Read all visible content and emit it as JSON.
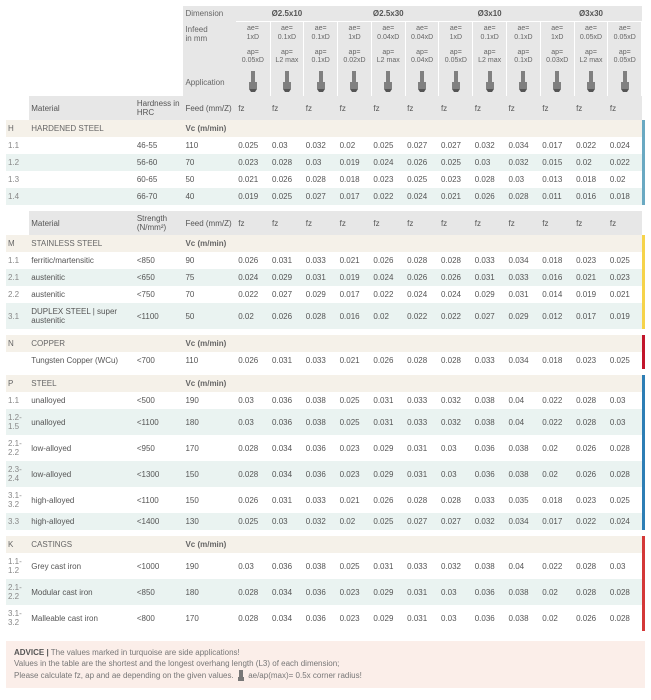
{
  "header": {
    "dimension_label": "Dimension",
    "infeed_label": "Infeed",
    "infeed_unit": "in mm",
    "application_label": "Application",
    "groups": [
      "Ø2.5x10",
      "Ø2.5x30",
      "Ø3x10",
      "Ø3x30"
    ],
    "cols": [
      {
        "ae": "ae= 1xD",
        "ap": "ap= 0.05xD"
      },
      {
        "ae": "ae= 0.1xD",
        "ap": "ap= L2 max"
      },
      {
        "ae": "ae= 0.1xD",
        "ap": "ap= 0.1xD"
      },
      {
        "ae": "ae= 1xD",
        "ap": "ap= 0.02xD"
      },
      {
        "ae": "ae= 0.04xD",
        "ap": "ap= L2 max"
      },
      {
        "ae": "ae= 0.04xD",
        "ap": "ap= 0.04xD"
      },
      {
        "ae": "ae= 1xD",
        "ap": "ap= 0.05xD"
      },
      {
        "ae": "ae= 0.1xD",
        "ap": "ap= L2 max"
      },
      {
        "ae": "ae= 0.1xD",
        "ap": "ap= 0.1xD"
      },
      {
        "ae": "ae= 1xD",
        "ap": "ap= 0.03xD"
      },
      {
        "ae": "ae= 0.05xD",
        "ap": "ap= L2 max"
      },
      {
        "ae": "ae= 0.05xD",
        "ap": "ap= 0.05xD"
      }
    ],
    "material_label": "Material",
    "hardness_label": "Hardness in HRC",
    "strength_label": "Strength (N/mm²)",
    "feed_label": "Feed (mm/Z)",
    "vc_label": "Vc (m/min)",
    "fz": "fz"
  },
  "colors": {
    "hdr_bg": "#e7e7e7",
    "cat_bg": "#f5f1e9",
    "alt_bg": "#eaf3f1",
    "advice_bg": "#fbeee9",
    "H": "#6aa9c2",
    "M": "#f6d34a",
    "N": "#c2152b",
    "P": "#2d7eb5",
    "K": "#d43838"
  },
  "sections": [
    {
      "letter": "H",
      "color": "#6aa9c2",
      "hardness_key": "hrc",
      "category": "HARDENED STEEL",
      "rows": [
        {
          "code": "1.1",
          "name": "",
          "h": "46-55",
          "vc": "110",
          "v": [
            "0.025",
            "0.03",
            "0.032",
            "0.02",
            "0.025",
            "0.027",
            "0.027",
            "0.032",
            "0.034",
            "0.017",
            "0.022",
            "0.024"
          ]
        },
        {
          "code": "1.2",
          "name": "",
          "h": "56-60",
          "vc": "70",
          "v": [
            "0.023",
            "0.028",
            "0.03",
            "0.019",
            "0.024",
            "0.026",
            "0.025",
            "0.03",
            "0.032",
            "0.015",
            "0.02",
            "0.022"
          ],
          "alt": true
        },
        {
          "code": "1.3",
          "name": "",
          "h": "60-65",
          "vc": "50",
          "v": [
            "0.021",
            "0.026",
            "0.028",
            "0.018",
            "0.023",
            "0.025",
            "0.023",
            "0.028",
            "0.03",
            "0.013",
            "0.018",
            "0.02"
          ]
        },
        {
          "code": "1.4",
          "name": "",
          "h": "66-70",
          "vc": "40",
          "v": [
            "0.019",
            "0.025",
            "0.027",
            "0.017",
            "0.022",
            "0.024",
            "0.021",
            "0.026",
            "0.028",
            "0.011",
            "0.016",
            "0.018"
          ],
          "alt": true
        }
      ]
    },
    {
      "letter": "M",
      "color": "#f6d34a",
      "hardness_key": "strength",
      "show_header": true,
      "category": "STAINLESS STEEL",
      "rows": [
        {
          "code": "1.1",
          "name": "ferritic/martensitic",
          "h": "<850",
          "vc": "90",
          "v": [
            "0.026",
            "0.031",
            "0.033",
            "0.021",
            "0.026",
            "0.028",
            "0.028",
            "0.033",
            "0.034",
            "0.018",
            "0.023",
            "0.025"
          ]
        },
        {
          "code": "2.1",
          "name": "austenitic",
          "h": "<650",
          "vc": "75",
          "v": [
            "0.024",
            "0.029",
            "0.031",
            "0.019",
            "0.024",
            "0.026",
            "0.026",
            "0.031",
            "0.033",
            "0.016",
            "0.021",
            "0.023"
          ],
          "alt": true
        },
        {
          "code": "2.2",
          "name": "austenitic",
          "h": "<750",
          "vc": "70",
          "v": [
            "0.022",
            "0.027",
            "0.029",
            "0.017",
            "0.022",
            "0.024",
            "0.024",
            "0.029",
            "0.031",
            "0.014",
            "0.019",
            "0.021"
          ]
        },
        {
          "code": "3.1",
          "name": "DUPLEX STEEL | super austenitic",
          "h": "<1100",
          "vc": "50",
          "v": [
            "0.02",
            "0.026",
            "0.028",
            "0.016",
            "0.02",
            "0.022",
            "0.022",
            "0.027",
            "0.029",
            "0.012",
            "0.017",
            "0.019"
          ],
          "alt": true
        }
      ]
    },
    {
      "letter": "N",
      "color": "#c2152b",
      "category": "COPPER",
      "rows": [
        {
          "code": "",
          "name": "Tungsten Copper (WCu)",
          "h": "<700",
          "vc": "110",
          "v": [
            "0.026",
            "0.031",
            "0.033",
            "0.021",
            "0.026",
            "0.028",
            "0.028",
            "0.033",
            "0.034",
            "0.018",
            "0.023",
            "0.025"
          ]
        }
      ]
    },
    {
      "letter": "P",
      "color": "#2d7eb5",
      "category": "STEEL",
      "rows": [
        {
          "code": "1.1",
          "name": "unalloyed",
          "h": "<500",
          "vc": "190",
          "v": [
            "0.03",
            "0.036",
            "0.038",
            "0.025",
            "0.031",
            "0.033",
            "0.032",
            "0.038",
            "0.04",
            "0.022",
            "0.028",
            "0.03"
          ]
        },
        {
          "code": "1.2-1.5",
          "name": "unalloyed",
          "h": "<1100",
          "vc": "180",
          "v": [
            "0.03",
            "0.036",
            "0.038",
            "0.025",
            "0.031",
            "0.033",
            "0.032",
            "0.038",
            "0.04",
            "0.022",
            "0.028",
            "0.03"
          ],
          "alt": true
        },
        {
          "code": "2.1-2.2",
          "name": "low-alloyed",
          "h": "<950",
          "vc": "170",
          "v": [
            "0.028",
            "0.034",
            "0.036",
            "0.023",
            "0.029",
            "0.031",
            "0.03",
            "0.036",
            "0.038",
            "0.02",
            "0.026",
            "0.028"
          ]
        },
        {
          "code": "2.3-2.4",
          "name": "low-alloyed",
          "h": "<1300",
          "vc": "150",
          "v": [
            "0.028",
            "0.034",
            "0.036",
            "0.023",
            "0.029",
            "0.031",
            "0.03",
            "0.036",
            "0.038",
            "0.02",
            "0.026",
            "0.028"
          ],
          "alt": true
        },
        {
          "code": "3.1-3.2",
          "name": "high-alloyed",
          "h": "<1100",
          "vc": "150",
          "v": [
            "0.026",
            "0.031",
            "0.033",
            "0.021",
            "0.026",
            "0.028",
            "0.028",
            "0.033",
            "0.035",
            "0.018",
            "0.023",
            "0.025"
          ]
        },
        {
          "code": "3.3",
          "name": "high-alloyed",
          "h": "<1400",
          "vc": "130",
          "v": [
            "0.025",
            "0.03",
            "0.032",
            "0.02",
            "0.025",
            "0.027",
            "0.027",
            "0.032",
            "0.034",
            "0.017",
            "0.022",
            "0.024"
          ],
          "alt": true
        }
      ]
    },
    {
      "letter": "K",
      "color": "#d43838",
      "category": "CASTINGS",
      "rows": [
        {
          "code": "1.1-1.2",
          "name": "Grey cast iron",
          "h": "<1000",
          "vc": "190",
          "v": [
            "0.03",
            "0.036",
            "0.038",
            "0.025",
            "0.031",
            "0.033",
            "0.032",
            "0.038",
            "0.04",
            "0.022",
            "0.028",
            "0.03"
          ]
        },
        {
          "code": "2.1-2.2",
          "name": "Modular cast iron",
          "h": "<850",
          "vc": "180",
          "v": [
            "0.028",
            "0.034",
            "0.036",
            "0.023",
            "0.029",
            "0.031",
            "0.03",
            "0.036",
            "0.038",
            "0.02",
            "0.028",
            "0.028"
          ],
          "alt": true
        },
        {
          "code": "3.1-3.2",
          "name": "Malleable cast iron",
          "h": "<800",
          "vc": "170",
          "v": [
            "0.028",
            "0.034",
            "0.036",
            "0.023",
            "0.029",
            "0.031",
            "0.03",
            "0.036",
            "0.038",
            "0.02",
            "0.026",
            "0.028"
          ]
        }
      ]
    }
  ],
  "advice": {
    "title": "ADVICE |",
    "line1": "The values marked in turquoise are side applications!",
    "line2": "Values in the table are the shortest and the longest overhang length (L3) of each dimension;",
    "line3": "Please calculate fz, ap and ae depending on the given values.",
    "tail": "ae/ap(max)= 0.5x corner radius!"
  }
}
